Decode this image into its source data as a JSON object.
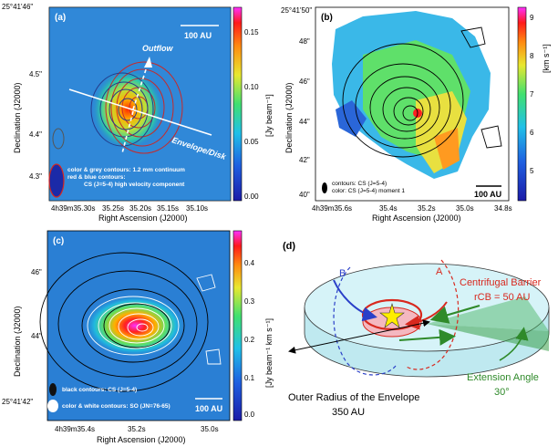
{
  "panel_a": {
    "label": "(a)",
    "scalebar": "100 AU",
    "outflow": "Outflow",
    "envelope": "Envelope/Disk",
    "legend1": "color & grey contours: 1.2 mm continuum",
    "legend2": "red & blue contours:",
    "legend3": "CS (J=5-4) high velocity component",
    "y_top": "25°41'46\"",
    "yticks": [
      "4.5\"",
      "4.4\"",
      "4.3\""
    ],
    "xticks": [
      "4h39m35.30s",
      "35.25s",
      "35.20s",
      "35.15s",
      "35.10s"
    ],
    "xlabel": "Right Ascension (J2000)",
    "ylabel": "Declination (J2000)",
    "cb_ticks": [
      "0.15",
      "0.10",
      "0.05",
      "0.00"
    ],
    "cb_label": "[Jy beam⁻¹]"
  },
  "panel_b": {
    "label": "(b)",
    "y_top": "25°41'50\"",
    "yticks": [
      "48\"",
      "46\"",
      "44\"",
      "42\"",
      "40\""
    ],
    "xticks": [
      "4h39m35.6s",
      "35.4s",
      "35.2s",
      "35.0s",
      "34.8s"
    ],
    "xlabel": "Right Ascension (J2000)",
    "ylabel": "Declination (J2000)",
    "legend1": "contours: CS (J=5-4)",
    "legend2": "color: CS (J=5-4) moment 1",
    "scalebar": "100 AU",
    "cb_ticks": [
      "9",
      "8",
      "7",
      "6",
      "5"
    ],
    "cb_label": "[km s⁻¹]"
  },
  "panel_c": {
    "label": "(c)",
    "yticks": [
      "46\"",
      "44\"",
      "25°41'42\""
    ],
    "xticks": [
      "4h39m35.4s",
      "35.2s",
      "35.0s"
    ],
    "xlabel": "Right Ascension (J2000)",
    "ylabel": "Declination (J2000)",
    "legend1": "black contours: CS (J=5-4)",
    "legend2": "color & white contours: SO (JN=76-65)",
    "scalebar": "100 AU",
    "cb_ticks": [
      "0.4",
      "0.3",
      "0.2",
      "0.1",
      "0.0"
    ],
    "cb_label": "[Jy beam⁻¹ km s⁻¹]"
  },
  "panel_d": {
    "label": "(d)",
    "a": "A",
    "b": "B",
    "cb_title": "Centrifugal Barrier",
    "cb_value": "rCB = 50 AU",
    "ext_title": "Extension Angle",
    "ext_value": "30°",
    "outer1": "Outer Radius of the Envelope",
    "outer2": "350 AU"
  },
  "colors": {
    "red": "#d8281e",
    "blue": "#2a3fc8",
    "green": "#2f8a2a"
  }
}
